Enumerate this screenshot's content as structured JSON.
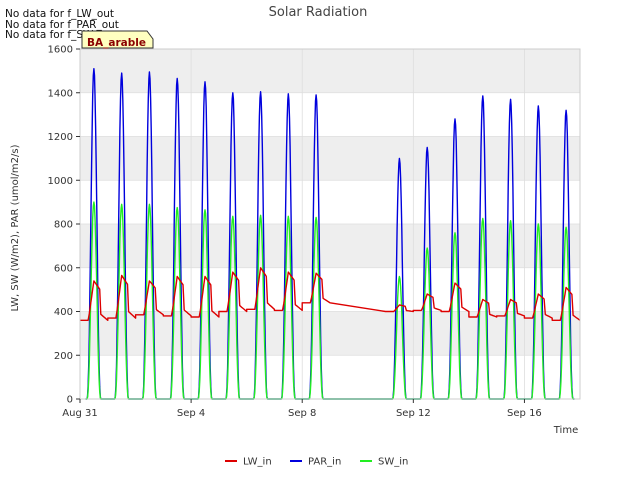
{
  "notes": [
    "No data for f_LW_out",
    "No data for f_PAR_out",
    "No data for f_SW_out"
  ],
  "site_badge": "BA_arable",
  "colors": {
    "LW_in": "#dd0000",
    "PAR_in": "#0000dd",
    "SW_in": "#22ee22",
    "band": "#eeeeee",
    "grid": "#dddddd",
    "badge_fill": "#ffffc0"
  },
  "chart_data": {
    "type": "line",
    "title": "Solar Radiation",
    "xlabel": "Time",
    "ylabel": "LW, SW (W/m2), PAR (umol/m2/s)",
    "xlim": [
      "2023-08-31",
      "2023-09-18"
    ],
    "ylim": [
      0,
      1600
    ],
    "x_ticks": [
      "2023-08-31",
      "2023-09-04",
      "2023-09-08",
      "2023-09-12",
      "2023-09-16"
    ],
    "x_tick_labels": [
      "Aug 31",
      "Sep 4",
      "Sep 8",
      "Sep 12",
      "Sep 16"
    ],
    "y_ticks": [
      0,
      200,
      400,
      600,
      800,
      1000,
      1200,
      1400,
      1600
    ],
    "grid": true,
    "legend_position": "bottom",
    "daily": [
      {
        "date": "2023-08-31",
        "PAR_in_peak": 1510,
        "SW_in_peak": 900,
        "LW_in_night": 360,
        "LW_in_peak": 540
      },
      {
        "date": "2023-09-01",
        "PAR_in_peak": 1490,
        "SW_in_peak": 890,
        "LW_in_night": 370,
        "LW_in_peak": 565
      },
      {
        "date": "2023-09-02",
        "PAR_in_peak": 1495,
        "SW_in_peak": 890,
        "LW_in_night": 385,
        "LW_in_peak": 540
      },
      {
        "date": "2023-09-03",
        "PAR_in_peak": 1465,
        "SW_in_peak": 875,
        "LW_in_night": 380,
        "LW_in_peak": 560
      },
      {
        "date": "2023-09-04",
        "PAR_in_peak": 1450,
        "SW_in_peak": 865,
        "LW_in_night": 375,
        "LW_in_peak": 560
      },
      {
        "date": "2023-09-05",
        "PAR_in_peak": 1400,
        "SW_in_peak": 835,
        "LW_in_night": 400,
        "LW_in_peak": 580
      },
      {
        "date": "2023-09-06",
        "PAR_in_peak": 1405,
        "SW_in_peak": 840,
        "LW_in_night": 410,
        "LW_in_peak": 600
      },
      {
        "date": "2023-09-07",
        "PAR_in_peak": 1395,
        "SW_in_peak": 835,
        "LW_in_night": 405,
        "LW_in_peak": 580
      },
      {
        "date": "2023-09-08",
        "PAR_in_peak": 1390,
        "SW_in_peak": 830,
        "LW_in_night": 440,
        "LW_in_peak": 575
      },
      {
        "date": "2023-09-11",
        "PAR_in_peak": 1100,
        "SW_in_peak": 560,
        "LW_in_night": 400,
        "LW_in_peak": 430
      },
      {
        "date": "2023-09-12",
        "PAR_in_peak": 1150,
        "SW_in_peak": 690,
        "LW_in_night": 405,
        "LW_in_peak": 480
      },
      {
        "date": "2023-09-13",
        "PAR_in_peak": 1280,
        "SW_in_peak": 760,
        "LW_in_night": 400,
        "LW_in_peak": 530
      },
      {
        "date": "2023-09-14",
        "PAR_in_peak": 1385,
        "SW_in_peak": 825,
        "LW_in_night": 375,
        "LW_in_peak": 455
      },
      {
        "date": "2023-09-15",
        "PAR_in_peak": 1370,
        "SW_in_peak": 815,
        "LW_in_night": 380,
        "LW_in_peak": 455
      },
      {
        "date": "2023-09-16",
        "PAR_in_peak": 1340,
        "SW_in_peak": 800,
        "LW_in_night": 370,
        "LW_in_peak": 480
      },
      {
        "date": "2023-09-17",
        "PAR_in_peak": 1320,
        "SW_in_peak": 785,
        "LW_in_night": 360,
        "LW_in_peak": 510
      }
    ],
    "data_gap": {
      "from": "2023-09-09",
      "to": "2023-09-11"
    },
    "series": [
      {
        "name": "LW_in"
      },
      {
        "name": "PAR_in"
      },
      {
        "name": "SW_in"
      }
    ]
  }
}
